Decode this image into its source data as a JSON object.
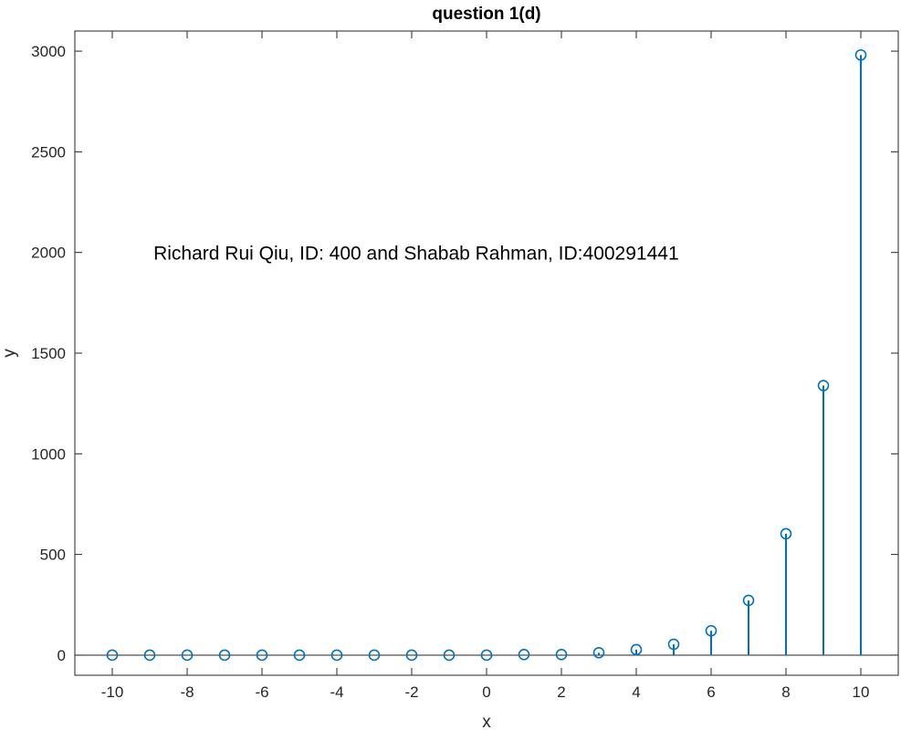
{
  "chart_data": {
    "type": "stem",
    "title": "question 1(d)",
    "xlabel": "x",
    "ylabel": "y",
    "annotation": "Richard Rui Qiu, ID: 400 and Shabab Rahman, ID:400291441",
    "xlim": [
      -11,
      11
    ],
    "ylim": [
      -100,
      3100
    ],
    "xticks": [
      -10,
      -8,
      -6,
      -4,
      -2,
      0,
      2,
      4,
      6,
      8,
      10
    ],
    "xtick_labels": [
      "-10",
      "-8",
      "-6",
      "-4",
      "-2",
      "0",
      "2",
      "4",
      "6",
      "8",
      "10"
    ],
    "yticks": [
      0,
      500,
      1000,
      1500,
      2000,
      2500,
      3000
    ],
    "ytick_labels": [
      "0",
      "500",
      "1000",
      "1500",
      "2000",
      "2500",
      "3000"
    ],
    "grid": false,
    "series": [
      {
        "color": "#0072BD",
        "marker": "circle",
        "x": [
          -10,
          -9,
          -8,
          -7,
          -6,
          -5,
          -4,
          -3,
          -2,
          -1,
          0,
          1,
          2,
          3,
          4,
          5,
          6,
          7,
          8,
          9,
          10
        ],
        "y": [
          0,
          0,
          0,
          0,
          0,
          0,
          0,
          0,
          0,
          0,
          0,
          3,
          3,
          12,
          27,
          54,
          121,
          272,
          603,
          1339,
          2981
        ]
      }
    ]
  }
}
